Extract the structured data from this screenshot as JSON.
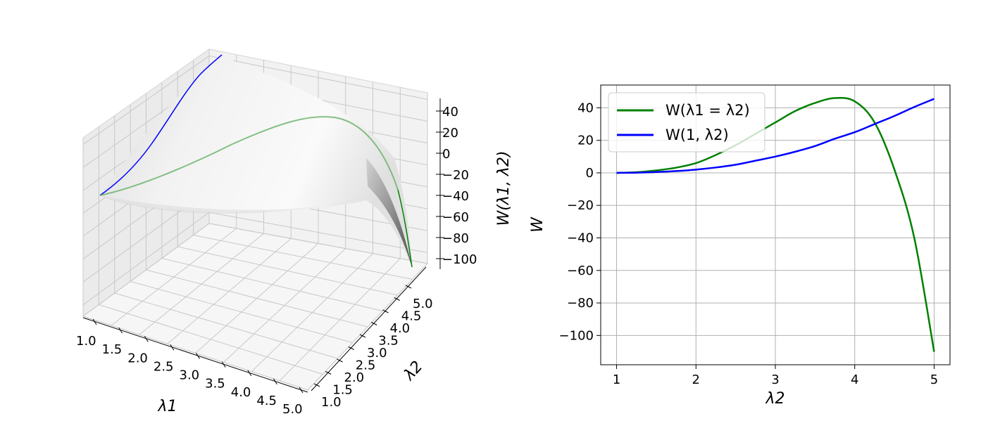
{
  "chart_data": [
    {
      "type": "surface3d",
      "title": "",
      "xlabel": "λ1",
      "ylabel": "λ2",
      "zlabel": "W(λ1, λ2)",
      "xlim": [
        1.0,
        5.0
      ],
      "ylim": [
        1.0,
        5.0
      ],
      "zlim": [
        -110,
        46
      ],
      "x_ticks": [
        "1.0",
        "1.5",
        "2.0",
        "2.5",
        "3.0",
        "3.5",
        "4.0",
        "4.5",
        "5.0"
      ],
      "y_ticks": [
        "1.0",
        "1.5",
        "2.0",
        "2.5",
        "3.0",
        "3.5",
        "4.0",
        "4.5",
        "5.0"
      ],
      "z_ticks": [
        "40",
        "20",
        "0",
        "−20",
        "−40",
        "−60",
        "−80",
        "−100"
      ],
      "grid": true,
      "surface_color": "#bdbdbd",
      "curves": [
        {
          "color": "#0000ff",
          "x": [
            1,
            1,
            1,
            1,
            1,
            1,
            1,
            1,
            1
          ],
          "y": [
            1,
            1.5,
            2,
            2.5,
            3,
            3.5,
            4,
            4.5,
            5
          ],
          "z": [
            0,
            0.5,
            2,
            5,
            10,
            16,
            25,
            35,
            45
          ]
        },
        {
          "color": "#008000",
          "x": [
            1,
            1.5,
            2,
            2.5,
            3,
            3.5,
            4,
            4.5,
            5
          ],
          "y": [
            1,
            1.5,
            2,
            2.5,
            3,
            3.5,
            4,
            4.5,
            5
          ],
          "z": [
            0,
            1.5,
            6,
            17,
            31,
            43,
            44,
            2,
            -110
          ]
        }
      ]
    },
    {
      "type": "line",
      "title": "",
      "xlabel": "λ2",
      "ylabel": "W",
      "xlim": [
        0.8,
        5.2
      ],
      "ylim": [
        -118,
        54
      ],
      "x_ticks": [
        1,
        2,
        3,
        4,
        5
      ],
      "y_ticks": [
        40,
        20,
        0,
        -20,
        -40,
        -60,
        -80,
        -100
      ],
      "y_tick_labels": [
        "40",
        "20",
        "0",
        "−20",
        "−40",
        "−60",
        "−80",
        "−100"
      ],
      "grid": true,
      "legend_position": "top-left",
      "series": [
        {
          "name": "W(λ1 = λ2)",
          "color": "#008000",
          "x": [
            1,
            1.25,
            1.5,
            1.75,
            2,
            2.25,
            2.5,
            2.75,
            3,
            3.25,
            3.5,
            3.75,
            4,
            4.25,
            4.5,
            4.75,
            5
          ],
          "y": [
            0,
            0.4,
            1.5,
            3.2,
            6,
            11,
            17,
            24,
            31,
            38,
            43,
            46,
            44,
            31,
            2,
            -40,
            -110
          ]
        },
        {
          "name": "W(1, λ2)",
          "color": "#0000ff",
          "x": [
            1,
            1.25,
            1.5,
            1.75,
            2,
            2.25,
            2.5,
            2.75,
            3,
            3.25,
            3.5,
            3.75,
            4,
            4.25,
            4.5,
            4.75,
            5
          ],
          "y": [
            0,
            0.1,
            0.5,
            1.1,
            2,
            3.3,
            5,
            7.5,
            10,
            13,
            16.5,
            21,
            25,
            30,
            35,
            40.5,
            45.5
          ]
        }
      ]
    }
  ]
}
